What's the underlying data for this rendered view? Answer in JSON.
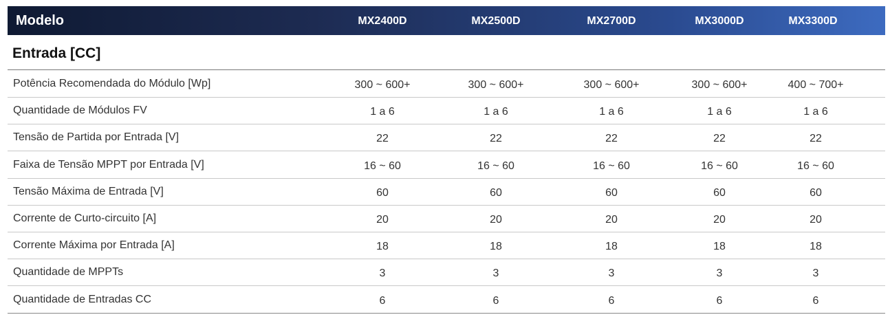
{
  "header": {
    "label": "Modelo",
    "models": [
      "MX2400D",
      "MX2500D",
      "MX2700D",
      "MX3000D",
      "MX3300D"
    ]
  },
  "section": {
    "title": "Entrada [CC]"
  },
  "rows": [
    {
      "label": "Potência Recomendada do Módulo [Wp]",
      "values": [
        "300 ~ 600+",
        "300 ~ 600+",
        "300 ~ 600+",
        "300 ~ 600+",
        "400 ~ 700+"
      ]
    },
    {
      "label": "Quantidade de Módulos FV",
      "values": [
        "1 a 6",
        "1 a 6",
        "1 a 6",
        "1 a 6",
        "1 a 6"
      ]
    },
    {
      "label": "Tensão de Partida por Entrada [V]",
      "values": [
        "22",
        "22",
        "22",
        "22",
        "22"
      ]
    },
    {
      "label": "Faixa de Tensão MPPT por Entrada [V]",
      "values": [
        "16 ~ 60",
        "16 ~ 60",
        "16 ~ 60",
        "16 ~ 60",
        "16 ~ 60"
      ]
    },
    {
      "label": "Tensão Máxima de Entrada [V]",
      "values": [
        "60",
        "60",
        "60",
        "60",
        "60"
      ]
    },
    {
      "label": "Corrente de Curto-circuito [A]",
      "values": [
        "20",
        "20",
        "20",
        "20",
        "20"
      ]
    },
    {
      "label": "Corrente Máxima por Entrada [A]",
      "values": [
        "18",
        "18",
        "18",
        "18",
        "18"
      ]
    },
    {
      "label": "Quantidade de MPPTs",
      "values": [
        "3",
        "3",
        "3",
        "3",
        "3"
      ]
    },
    {
      "label": "Quantidade de Entradas CC",
      "values": [
        "6",
        "6",
        "6",
        "6",
        "6"
      ]
    }
  ]
}
